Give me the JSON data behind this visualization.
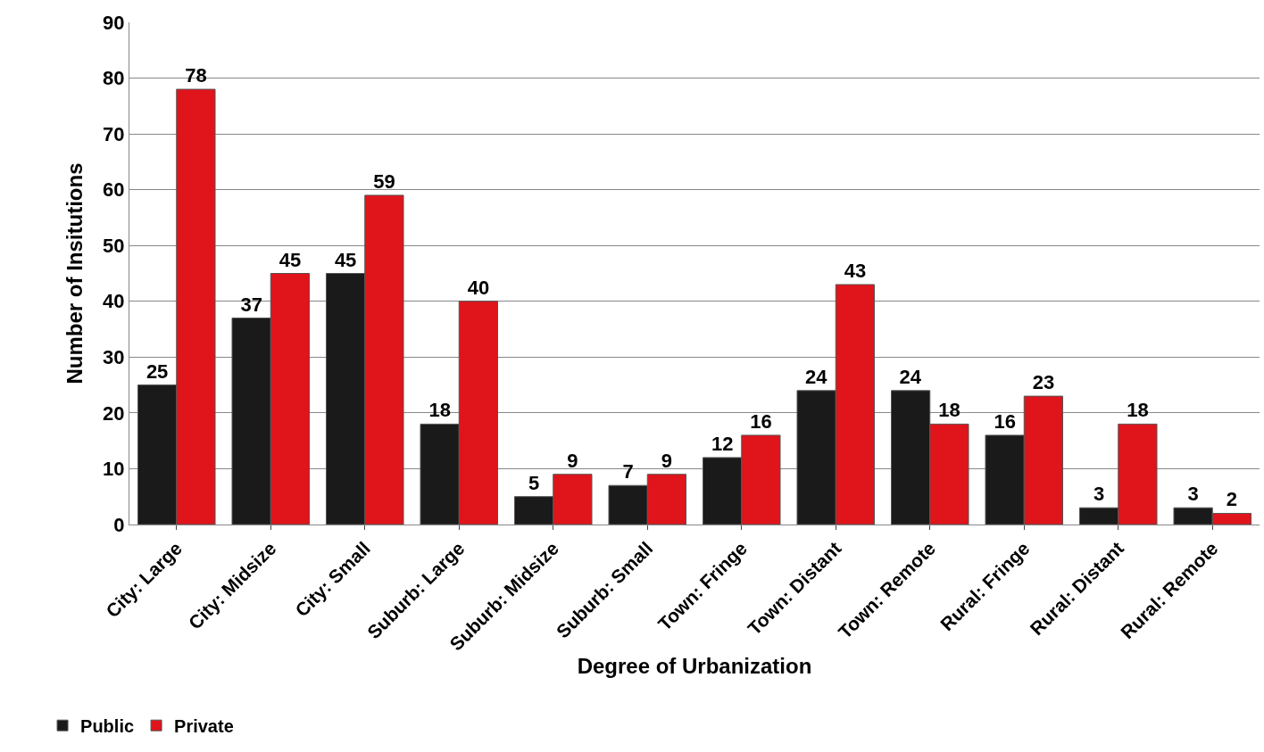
{
  "chart_data": {
    "type": "bar",
    "xlabel": "Degree of Urbanization",
    "ylabel": "Number of Insitutions",
    "categories": [
      "City: Large",
      "City: Midsize",
      "City: Small",
      "Suburb: Large",
      "Suburb: Midsize",
      "Suburb: Small",
      "Town: Fringe",
      "Town: Distant",
      "Town: Remote",
      "Rural: Fringe",
      "Rural: Distant",
      "Rural: Remote"
    ],
    "series": [
      {
        "name": "Public",
        "color": "#1a1a1a",
        "values": [
          25,
          37,
          45,
          18,
          5,
          7,
          12,
          24,
          24,
          16,
          3,
          3
        ]
      },
      {
        "name": "Private",
        "color": "#e0141b",
        "values": [
          78,
          45,
          59,
          40,
          9,
          9,
          16,
          43,
          18,
          23,
          18,
          2
        ]
      }
    ],
    "ylim": [
      0,
      90
    ],
    "yticks": [
      0,
      10,
      20,
      30,
      40,
      50,
      60,
      70,
      80,
      90
    ],
    "grid": "y",
    "legend": "bottom left",
    "data_labels": true
  }
}
